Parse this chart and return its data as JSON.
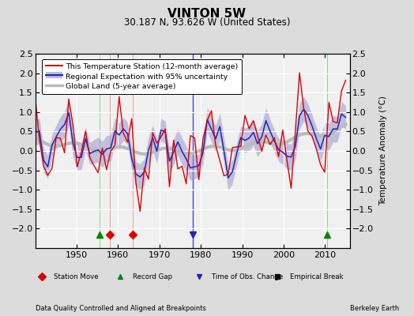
{
  "title": "VINTON 5W",
  "subtitle": "30.187 N, 93.626 W (United States)",
  "ylabel": "Temperature Anomaly (°C)",
  "xlabel_note": "Data Quality Controlled and Aligned at Breakpoints",
  "credit": "Berkeley Earth",
  "ylim": [
    -2.5,
    2.5
  ],
  "xlim": [
    1940,
    2016
  ],
  "yticks_left": [
    -2,
    -1.5,
    -1,
    -0.5,
    0,
    0.5,
    1,
    1.5,
    2,
    2.5
  ],
  "yticks_right": [
    -2,
    -1.5,
    -1,
    -0.5,
    0,
    0.5,
    1,
    1.5,
    2,
    2.5
  ],
  "xticks": [
    1950,
    1960,
    1970,
    1980,
    1990,
    2000,
    2010
  ],
  "bg_color": "#dcdcdc",
  "plot_bg_color": "#f0f0f0",
  "grid_color": "#ffffff",
  "station_color": "#dd0000",
  "regional_color": "#2222bb",
  "regional_fill_color": "#9999cc",
  "global_color": "#bbbbbb",
  "marker_events": {
    "station_move": {
      "years": [
        1958.0,
        1963.5
      ],
      "color": "#dd0000",
      "marker": "D",
      "label": "Station Move"
    },
    "record_gap": {
      "years": [
        1955.5,
        2010.5
      ],
      "color": "#008800",
      "marker": "^",
      "label": "Record Gap"
    },
    "time_obs_change": {
      "years": [
        1978.0
      ],
      "color": "#2222bb",
      "marker": "v",
      "label": "Time of Obs. Change"
    },
    "empirical_break": {
      "years": [],
      "color": "#111111",
      "marker": "s",
      "label": "Empirical Break"
    }
  }
}
